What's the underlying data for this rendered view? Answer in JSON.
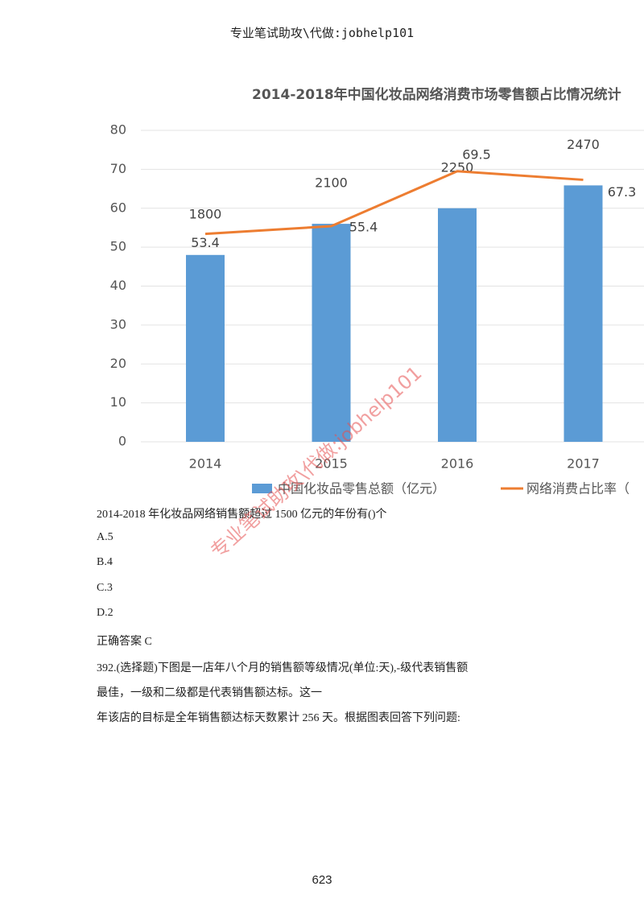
{
  "header": "专业笔试助攻\\代做:jobhelp101",
  "chart_data": {
    "type": "bar-line",
    "title": "2014-2018年中国化妆品网络消费市场零售额占比情况统计",
    "categories": [
      "2014",
      "2015",
      "2016",
      "2017"
    ],
    "series": [
      {
        "name": "中国化妆品零售总额（亿元）",
        "type": "bar",
        "color": "#5b9bd5",
        "axis": "y2",
        "values": [
          1800,
          2100,
          2250,
          2470
        ]
      },
      {
        "name": "网络消费占比率（",
        "type": "line",
        "color": "#ed7d31",
        "values": [
          53.4,
          55.4,
          69.5,
          67.3
        ]
      }
    ],
    "ylim": [
      0,
      80
    ],
    "yticks": [
      0,
      10,
      20,
      30,
      40,
      50,
      60,
      70,
      80
    ],
    "y2lim": [
      0,
      3000
    ],
    "grid": true
  },
  "question": "2014-2018 年化妆品网络销售额超过 1500 亿元的年份有()个",
  "options": [
    "A.5",
    "B.4",
    "C.3",
    "D.2"
  ],
  "answer": "正确答案 C",
  "next_question": [
    "392.(选择题)下图是一店年八个月的销售额等级情况(单位:天),-级代表销售额",
    "最佳，一级和二级都是代表销售额达标。这一",
    "年该店的目标是全年销售额达标天数累计 256 天。根据图表回答下列问题:"
  ],
  "page_number": "623",
  "watermark": "专业笔试助攻\\代做:jobhelp101"
}
